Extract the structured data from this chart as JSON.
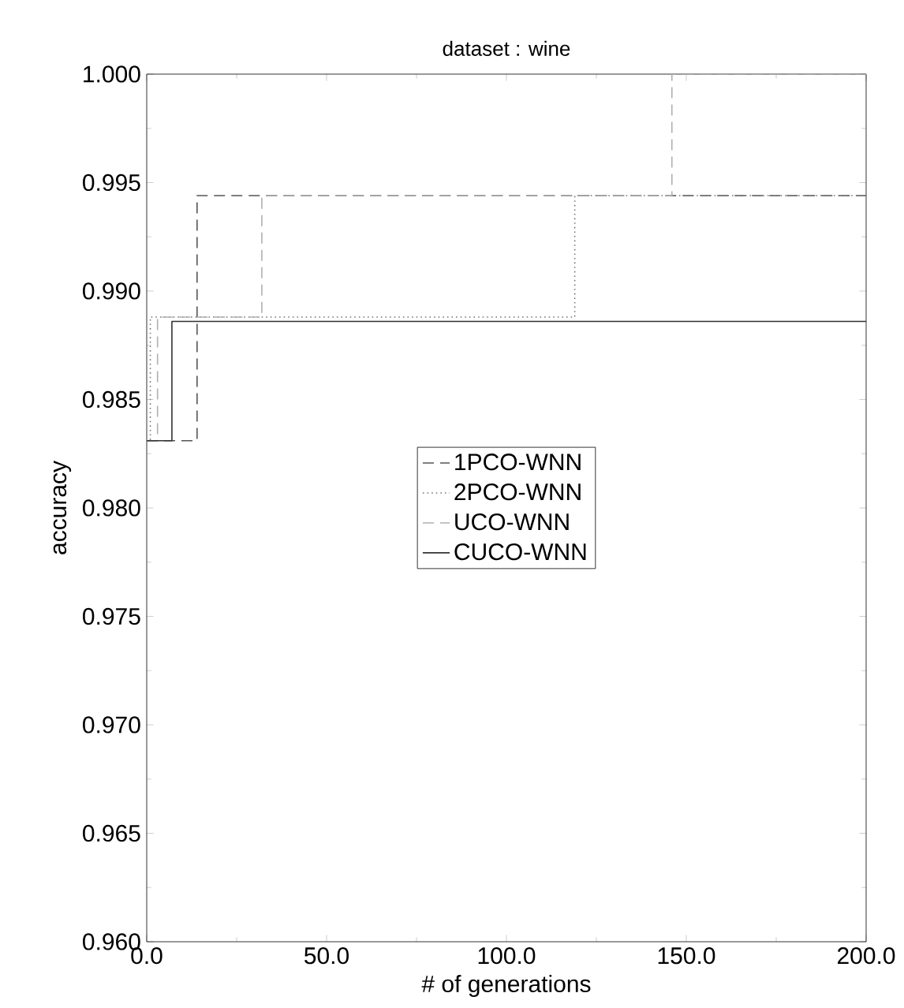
{
  "chart_data": {
    "type": "step",
    "title": "dataset : wine",
    "xlabel": "# of generations",
    "ylabel": "accuracy",
    "xlim": [
      0,
      200
    ],
    "ylim": [
      0.96,
      1.0
    ],
    "xticks": [
      {
        "value": 0,
        "label": "0.0"
      },
      {
        "value": 50,
        "label": "50.0"
      },
      {
        "value": 100,
        "label": "100.0"
      },
      {
        "value": 150,
        "label": "150.0"
      },
      {
        "value": 200,
        "label": "200.0"
      }
    ],
    "yticks": [
      {
        "value": 0.96,
        "label": "0.960"
      },
      {
        "value": 0.965,
        "label": "0.965"
      },
      {
        "value": 0.97,
        "label": "0.970"
      },
      {
        "value": 0.975,
        "label": "0.975"
      },
      {
        "value": 0.98,
        "label": "0.980"
      },
      {
        "value": 0.985,
        "label": "0.985"
      },
      {
        "value": 0.99,
        "label": "0.990"
      },
      {
        "value": 0.995,
        "label": "0.995"
      },
      {
        "value": 1.0,
        "label": "1.000"
      }
    ],
    "grid": false,
    "legend": "center",
    "marker": "none",
    "series": [
      {
        "name": "1PCO-WNN",
        "color": "#555555",
        "line_style": "dashed",
        "x": [
          0,
          14,
          200
        ],
        "values": [
          0.9831,
          0.9944,
          0.9944
        ]
      },
      {
        "name": "2PCO-WNN",
        "color": "#777777",
        "line_style": "dotted",
        "x": [
          0,
          1,
          119,
          200
        ],
        "values": [
          0.9831,
          0.9888,
          0.9944,
          0.9944
        ]
      },
      {
        "name": "UCO-WNN",
        "color": "#b0b0b0",
        "line_style": "dashed",
        "x": [
          0,
          3,
          32,
          146,
          200
        ],
        "values": [
          0.9831,
          0.9888,
          0.9944,
          1.0,
          1.0
        ]
      },
      {
        "name": "CUCO-WNN",
        "color": "#333333",
        "line_style": "solid",
        "x": [
          0,
          7,
          200
        ],
        "values": [
          0.9831,
          0.9886,
          0.9886
        ]
      }
    ]
  }
}
